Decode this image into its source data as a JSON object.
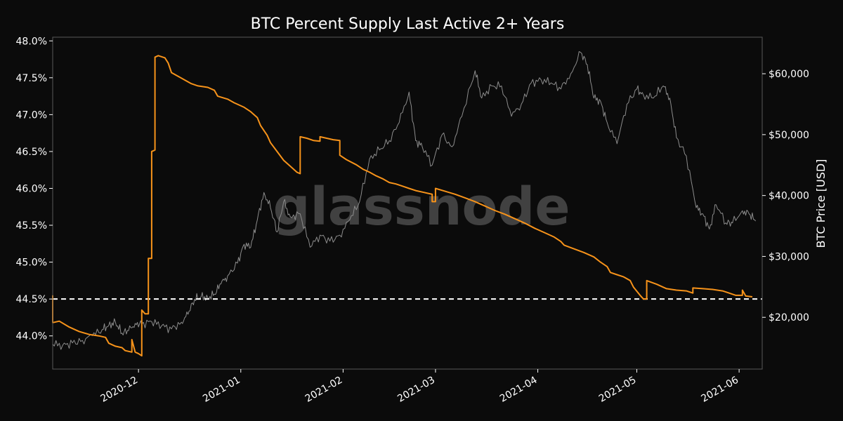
{
  "chart_data": {
    "type": "line",
    "title": "BTC Percent Supply Last Active 2+ Years",
    "ylabel_right": "BTC Price [USD]",
    "watermark": "glassnode",
    "x_range": [
      "2020-11-05",
      "2021-06-08"
    ],
    "y_left": {
      "range": [
        43.55,
        48.05
      ],
      "ticks": [
        "44.0%",
        "44.5%",
        "45.0%",
        "45.5%",
        "46.0%",
        "46.5%",
        "47.0%",
        "47.5%",
        "48.0%"
      ],
      "tick_values": [
        44.0,
        44.5,
        45.0,
        45.5,
        46.0,
        46.5,
        47.0,
        47.5,
        48.0
      ]
    },
    "y_right": {
      "range": [
        11500,
        66000
      ],
      "ticks": [
        "$20,000",
        "$30,000",
        "$40,000",
        "$50,000",
        "$60,000"
      ],
      "tick_values": [
        20000,
        30000,
        40000,
        50000,
        60000
      ]
    },
    "x_ticks": [
      {
        "label": "2020-12",
        "date": "2020-12-01"
      },
      {
        "label": "2021-01",
        "date": "2021-01-01"
      },
      {
        "label": "2021-02",
        "date": "2021-02-01"
      },
      {
        "label": "2021-03",
        "date": "2021-03-01"
      },
      {
        "label": "2021-04",
        "date": "2021-04-01"
      },
      {
        "label": "2021-05",
        "date": "2021-05-01"
      },
      {
        "label": "2021-06",
        "date": "2021-06-01"
      }
    ],
    "reference_line": {
      "value": 44.5,
      "style": "dashed",
      "color": "#ffffff"
    },
    "colors": {
      "supply": "#f7931a",
      "price": "#8c8c8c",
      "background": "#0b0b0b",
      "frame": "#5a5a5a"
    },
    "series": [
      {
        "axis": "left",
        "points": [
          [
            "2020-11-05",
            44.55
          ],
          [
            "2020-11-05",
            44.18
          ],
          [
            "2020-11-07",
            44.2
          ],
          [
            "2020-11-10",
            44.12
          ],
          [
            "2020-11-13",
            44.06
          ],
          [
            "2020-11-16",
            44.02
          ],
          [
            "2020-11-19",
            44.0
          ],
          [
            "2020-11-21",
            43.98
          ],
          [
            "2020-11-22",
            43.9
          ],
          [
            "2020-11-24",
            43.86
          ],
          [
            "2020-11-26",
            43.84
          ],
          [
            "2020-11-27",
            43.8
          ],
          [
            "2020-11-29",
            43.78
          ],
          [
            "2020-11-29",
            43.95
          ],
          [
            "2020-11-30",
            43.78
          ],
          [
            "2020-12-01",
            43.76
          ],
          [
            "2020-12-02",
            43.73
          ],
          [
            "2020-12-02",
            44.35
          ],
          [
            "2020-12-03",
            44.3
          ],
          [
            "2020-12-04",
            44.3
          ],
          [
            "2020-12-04",
            45.05
          ],
          [
            "2020-12-05",
            45.05
          ],
          [
            "2020-12-05",
            46.5
          ],
          [
            "2020-12-06",
            46.52
          ],
          [
            "2020-12-06",
            47.78
          ],
          [
            "2020-12-07",
            47.8
          ],
          [
            "2020-12-09",
            47.77
          ],
          [
            "2020-12-10",
            47.7
          ],
          [
            "2020-12-11",
            47.57
          ],
          [
            "2020-12-13",
            47.52
          ],
          [
            "2020-12-15",
            47.47
          ],
          [
            "2020-12-17",
            47.42
          ],
          [
            "2020-12-19",
            47.39
          ],
          [
            "2020-12-22",
            47.37
          ],
          [
            "2020-12-24",
            47.33
          ],
          [
            "2020-12-25",
            47.25
          ],
          [
            "2020-12-28",
            47.21
          ],
          [
            "2020-12-30",
            47.16
          ],
          [
            "2021-01-02",
            47.1
          ],
          [
            "2021-01-04",
            47.04
          ],
          [
            "2021-01-06",
            46.96
          ],
          [
            "2021-01-07",
            46.85
          ],
          [
            "2021-01-09",
            46.72
          ],
          [
            "2021-01-10",
            46.62
          ],
          [
            "2021-01-12",
            46.5
          ],
          [
            "2021-01-14",
            46.38
          ],
          [
            "2021-01-16",
            46.3
          ],
          [
            "2021-01-18",
            46.22
          ],
          [
            "2021-01-19",
            46.2
          ],
          [
            "2021-01-19",
            46.7
          ],
          [
            "2021-01-21",
            46.68
          ],
          [
            "2021-01-23",
            46.65
          ],
          [
            "2021-01-25",
            46.64
          ],
          [
            "2021-01-25",
            46.7
          ],
          [
            "2021-01-27",
            46.68
          ],
          [
            "2021-01-29",
            46.66
          ],
          [
            "2021-01-31",
            46.65
          ],
          [
            "2021-01-31",
            46.45
          ],
          [
            "2021-02-02",
            46.39
          ],
          [
            "2021-02-05",
            46.32
          ],
          [
            "2021-02-07",
            46.26
          ],
          [
            "2021-02-09",
            46.22
          ],
          [
            "2021-02-11",
            46.17
          ],
          [
            "2021-02-13",
            46.13
          ],
          [
            "2021-02-15",
            46.08
          ],
          [
            "2021-02-17",
            46.06
          ],
          [
            "2021-02-19",
            46.03
          ],
          [
            "2021-02-21",
            46.0
          ],
          [
            "2021-02-23",
            45.97
          ],
          [
            "2021-02-25",
            45.95
          ],
          [
            "2021-02-28",
            45.92
          ],
          [
            "2021-02-28",
            45.82
          ],
          [
            "2021-03-01",
            45.82
          ],
          [
            "2021-03-01",
            46.0
          ],
          [
            "2021-03-04",
            45.96
          ],
          [
            "2021-03-07",
            45.92
          ],
          [
            "2021-03-10",
            45.87
          ],
          [
            "2021-03-13",
            45.82
          ],
          [
            "2021-03-16",
            45.76
          ],
          [
            "2021-03-19",
            45.7
          ],
          [
            "2021-03-22",
            45.65
          ],
          [
            "2021-03-25",
            45.59
          ],
          [
            "2021-03-28",
            45.53
          ],
          [
            "2021-03-31",
            45.46
          ],
          [
            "2021-04-03",
            45.4
          ],
          [
            "2021-04-06",
            45.34
          ],
          [
            "2021-04-08",
            45.28
          ],
          [
            "2021-04-09",
            45.23
          ],
          [
            "2021-04-12",
            45.18
          ],
          [
            "2021-04-15",
            45.13
          ],
          [
            "2021-04-18",
            45.07
          ],
          [
            "2021-04-20",
            45.0
          ],
          [
            "2021-04-22",
            44.94
          ],
          [
            "2021-04-23",
            44.86
          ],
          [
            "2021-04-25",
            44.83
          ],
          [
            "2021-04-27",
            44.8
          ],
          [
            "2021-04-29",
            44.75
          ],
          [
            "2021-04-30",
            44.66
          ],
          [
            "2021-05-02",
            44.55
          ],
          [
            "2021-05-03",
            44.5
          ],
          [
            "2021-05-04",
            44.5
          ],
          [
            "2021-05-04",
            44.75
          ],
          [
            "2021-05-07",
            44.7
          ],
          [
            "2021-05-10",
            44.64
          ],
          [
            "2021-05-13",
            44.62
          ],
          [
            "2021-05-16",
            44.61
          ],
          [
            "2021-05-18",
            44.58
          ],
          [
            "2021-05-18",
            44.65
          ],
          [
            "2021-05-21",
            44.64
          ],
          [
            "2021-05-24",
            44.63
          ],
          [
            "2021-05-27",
            44.61
          ],
          [
            "2021-05-29",
            44.58
          ],
          [
            "2021-05-31",
            44.55
          ],
          [
            "2021-06-02",
            44.55
          ],
          [
            "2021-06-02",
            44.62
          ],
          [
            "2021-06-03",
            44.54
          ],
          [
            "2021-06-05",
            44.53
          ]
        ]
      },
      {
        "axis": "right",
        "points": [
          [
            "2020-11-05",
            15600
          ],
          [
            "2020-11-08",
            15400
          ],
          [
            "2020-11-11",
            15800
          ],
          [
            "2020-11-14",
            16200
          ],
          [
            "2020-11-17",
            17000
          ],
          [
            "2020-11-20",
            18000
          ],
          [
            "2020-11-22",
            18700
          ],
          [
            "2020-11-24",
            19200
          ],
          [
            "2020-11-26",
            17400
          ],
          [
            "2020-11-28",
            17800
          ],
          [
            "2020-11-30",
            19000
          ],
          [
            "2020-12-02",
            18900
          ],
          [
            "2020-12-05",
            19300
          ],
          [
            "2020-12-08",
            18600
          ],
          [
            "2020-12-11",
            18100
          ],
          [
            "2020-12-14",
            19200
          ],
          [
            "2020-12-16",
            20500
          ],
          [
            "2020-12-18",
            23000
          ],
          [
            "2020-12-20",
            23400
          ],
          [
            "2020-12-22",
            23200
          ],
          [
            "2020-12-24",
            23800
          ],
          [
            "2020-12-26",
            25500
          ],
          [
            "2020-12-28",
            26800
          ],
          [
            "2020-12-31",
            28900
          ],
          [
            "2021-01-02",
            32000
          ],
          [
            "2021-01-04",
            31500
          ],
          [
            "2021-01-06",
            36000
          ],
          [
            "2021-01-08",
            40500
          ],
          [
            "2021-01-10",
            38000
          ],
          [
            "2021-01-12",
            34000
          ],
          [
            "2021-01-14",
            39000
          ],
          [
            "2021-01-16",
            36500
          ],
          [
            "2021-01-19",
            37000
          ],
          [
            "2021-01-22",
            31500
          ],
          [
            "2021-01-25",
            33500
          ],
          [
            "2021-01-28",
            32500
          ],
          [
            "2021-01-31",
            33500
          ],
          [
            "2021-02-03",
            36000
          ],
          [
            "2021-02-06",
            39000
          ],
          [
            "2021-02-09",
            46000
          ],
          [
            "2021-02-12",
            47500
          ],
          [
            "2021-02-15",
            49000
          ],
          [
            "2021-02-18",
            52000
          ],
          [
            "2021-02-21",
            57000
          ],
          [
            "2021-02-23",
            49000
          ],
          [
            "2021-02-25",
            48000
          ],
          [
            "2021-02-28",
            45000
          ],
          [
            "2021-03-03",
            50000
          ],
          [
            "2021-03-06",
            48000
          ],
          [
            "2021-03-09",
            53000
          ],
          [
            "2021-03-13",
            60500
          ],
          [
            "2021-03-15",
            56000
          ],
          [
            "2021-03-18",
            58000
          ],
          [
            "2021-03-21",
            58000
          ],
          [
            "2021-03-24",
            53000
          ],
          [
            "2021-03-27",
            55000
          ],
          [
            "2021-03-30",
            58500
          ],
          [
            "2021-04-02",
            59000
          ],
          [
            "2021-04-05",
            58500
          ],
          [
            "2021-04-08",
            57500
          ],
          [
            "2021-04-11",
            60000
          ],
          [
            "2021-04-14",
            63500
          ],
          [
            "2021-04-16",
            61500
          ],
          [
            "2021-04-18",
            56000
          ],
          [
            "2021-04-20",
            55500
          ],
          [
            "2021-04-22",
            52000
          ],
          [
            "2021-04-25",
            48500
          ],
          [
            "2021-04-28",
            55000
          ],
          [
            "2021-05-01",
            57500
          ],
          [
            "2021-05-03",
            56500
          ],
          [
            "2021-05-06",
            56000
          ],
          [
            "2021-05-09",
            58000
          ],
          [
            "2021-05-11",
            56000
          ],
          [
            "2021-05-13",
            49500
          ],
          [
            "2021-05-16",
            46500
          ],
          [
            "2021-05-19",
            38000
          ],
          [
            "2021-05-21",
            37000
          ],
          [
            "2021-05-23",
            34500
          ],
          [
            "2021-05-25",
            38500
          ],
          [
            "2021-05-28",
            35500
          ],
          [
            "2021-05-30",
            35500
          ],
          [
            "2021-06-02",
            37500
          ],
          [
            "2021-06-04",
            37000
          ],
          [
            "2021-06-06",
            35800
          ]
        ]
      }
    ]
  }
}
